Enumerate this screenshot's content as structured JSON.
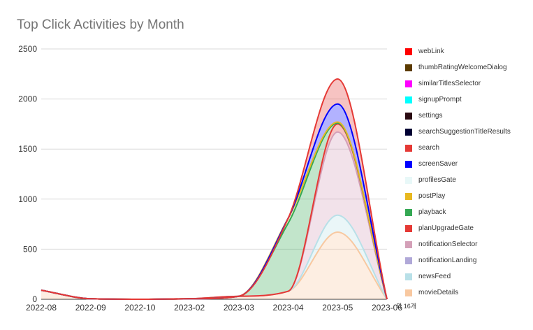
{
  "chart_data": {
    "type": "area",
    "title": "Top Click Activities by Month",
    "x_categories": [
      "2022-08",
      "2022-09",
      "2022-10",
      "2023-02",
      "2023-03",
      "2023-04",
      "2023-05",
      "2023-06"
    ],
    "ylim": [
      0,
      2500
    ],
    "yticks": [
      0,
      500,
      1000,
      1500,
      2000,
      2500
    ],
    "grid": true,
    "legend_position": "right",
    "legend_more_label": "외 16개",
    "series": [
      {
        "name": "webLink",
        "color": "#ff0000",
        "values": [
          0,
          0,
          0,
          0,
          0,
          0,
          0,
          0
        ]
      },
      {
        "name": "thumbRatingWelcomeDialog",
        "color": "#5b3a00",
        "values": [
          0,
          0,
          0,
          0,
          0,
          0,
          0,
          0
        ]
      },
      {
        "name": "similarTitlesSelector",
        "color": "#ff00ff",
        "values": [
          0,
          0,
          0,
          0,
          0,
          0,
          0,
          0
        ]
      },
      {
        "name": "signupPrompt",
        "color": "#00ffff",
        "values": [
          0,
          0,
          0,
          0,
          0,
          0,
          0,
          0
        ]
      },
      {
        "name": "settings",
        "color": "#2a0a12",
        "values": [
          0,
          0,
          0,
          0,
          0,
          0,
          0,
          0
        ]
      },
      {
        "name": "searchSuggestionTitleResults",
        "color": "#000033",
        "values": [
          0,
          0,
          0,
          0,
          0,
          0,
          0,
          0
        ]
      },
      {
        "name": "search",
        "color": "#e53935",
        "values": [
          0,
          0,
          0,
          0,
          0,
          0,
          250,
          0
        ]
      },
      {
        "name": "screenSaver",
        "color": "#0000ff",
        "values": [
          0,
          0,
          0,
          0,
          0,
          0,
          180,
          0
        ]
      },
      {
        "name": "profilesGate",
        "color": "#e8f8f8",
        "values": [
          0,
          0,
          0,
          0,
          0,
          0,
          0,
          0
        ]
      },
      {
        "name": "postPlay",
        "color": "#e8b820",
        "values": [
          0,
          0,
          0,
          0,
          0,
          50,
          10,
          0
        ]
      },
      {
        "name": "playback",
        "color": "#34a853",
        "values": [
          0,
          0,
          0,
          0,
          0,
          680,
          10,
          0
        ]
      },
      {
        "name": "planUpgradeGate",
        "color": "#e53935",
        "values": [
          0,
          0,
          0,
          0,
          0,
          0,
          80,
          0
        ]
      },
      {
        "name": "notificationSelector",
        "color": "#d4a0b8",
        "values": [
          0,
          0,
          0,
          0,
          0,
          0,
          830,
          0
        ]
      },
      {
        "name": "notificationLanding",
        "color": "#b0a8d8",
        "values": [
          0,
          0,
          0,
          0,
          0,
          0,
          0,
          0
        ]
      },
      {
        "name": "newsFeed",
        "color": "#b8e0e8",
        "values": [
          0,
          0,
          0,
          0,
          0,
          0,
          170,
          0
        ]
      },
      {
        "name": "movieDetails",
        "color": "#f8c8a0",
        "values": [
          90,
          5,
          0,
          5,
          30,
          80,
          670,
          0
        ]
      }
    ]
  }
}
